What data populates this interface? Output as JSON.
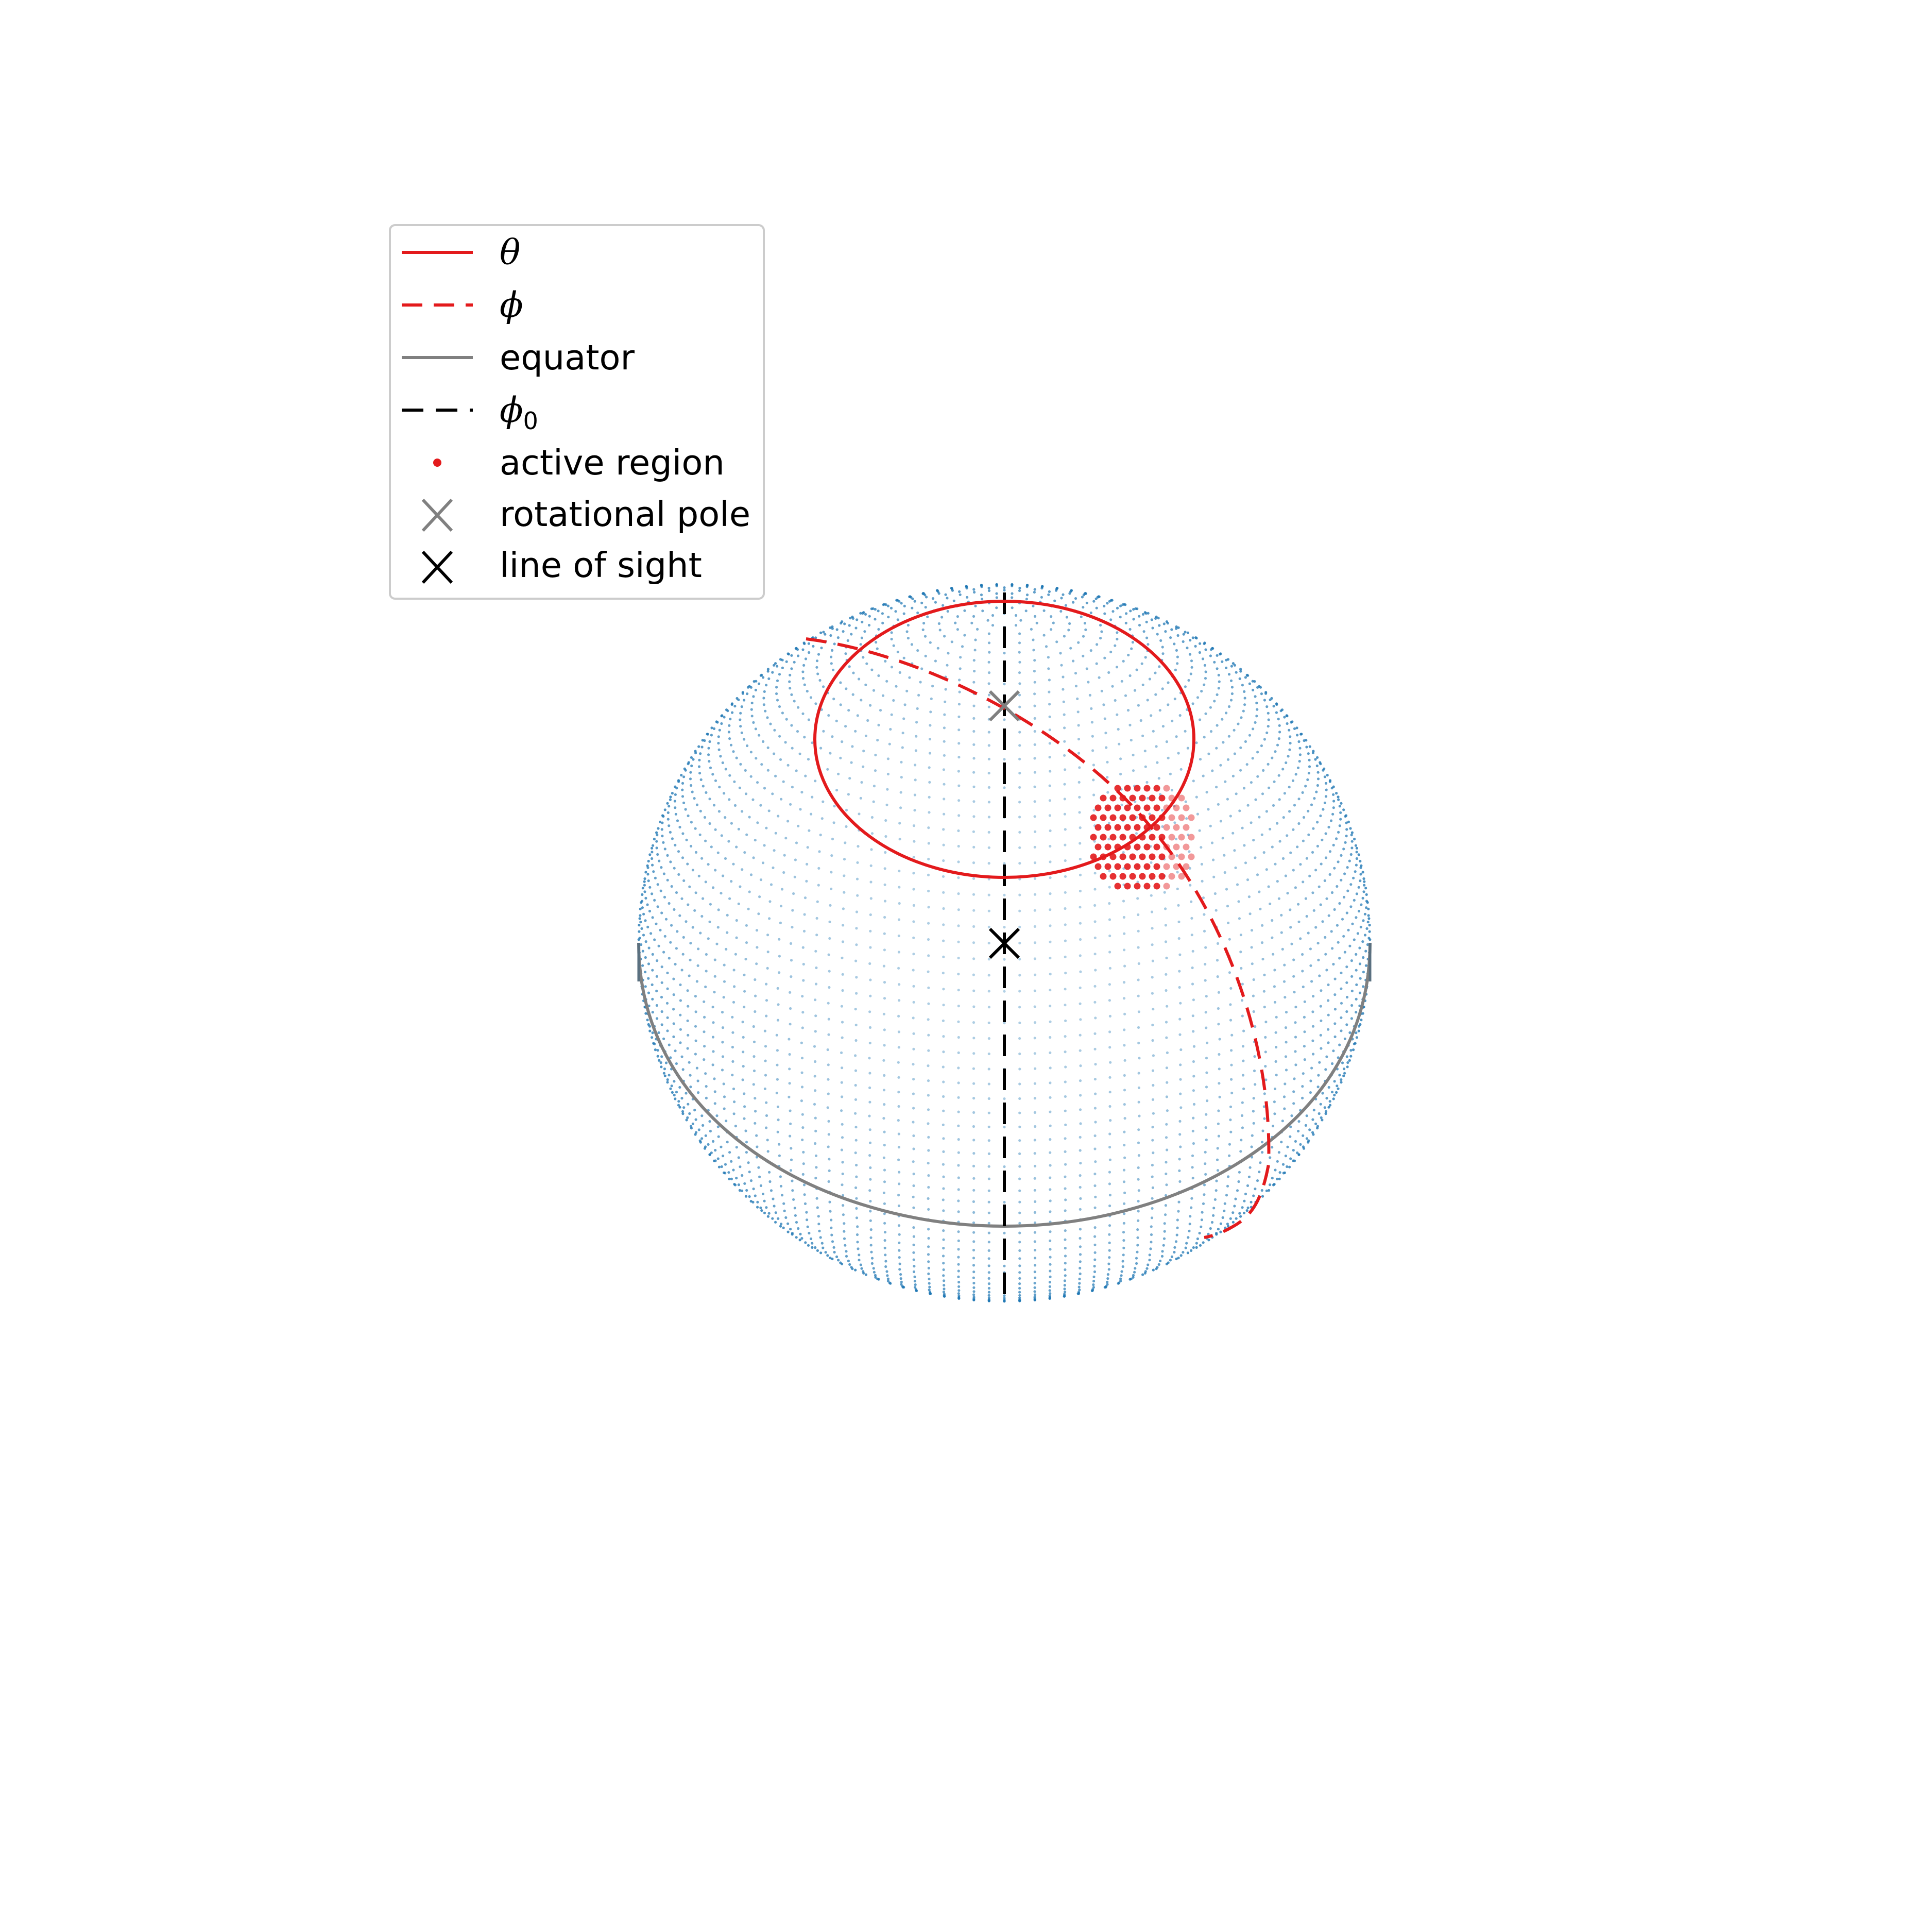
{
  "figure": {
    "description_type": "3D sphere diagram",
    "colors": {
      "sphere_points": "#1f77b4",
      "theta": "#e31a1c",
      "phi": "#e31a1c",
      "equator": "#808080",
      "phi0": "#000000",
      "active_region": "#e31a1c",
      "rotational_pole": "#808080",
      "line_of_sight": "#000000"
    }
  },
  "legend": {
    "items": [
      {
        "key": "theta",
        "label": "θ",
        "style": "solid-line",
        "color": "#e31a1c"
      },
      {
        "key": "phi",
        "label": "ϕ",
        "style": "dashed-line",
        "color": "#e31a1c"
      },
      {
        "key": "equator",
        "label": "equator",
        "style": "solid-line",
        "color": "#808080"
      },
      {
        "key": "phi0",
        "label": "ϕ",
        "subscript": "0",
        "style": "dashed-line",
        "color": "#000000"
      },
      {
        "key": "active_region",
        "label": "active region",
        "style": "dot",
        "color": "#e31a1c"
      },
      {
        "key": "rotational_pole",
        "label": "rotational pole",
        "style": "x-marker",
        "color": "#808080"
      },
      {
        "key": "line_of_sight",
        "label": "line of sight",
        "style": "x-marker",
        "color": "#000000"
      }
    ]
  }
}
